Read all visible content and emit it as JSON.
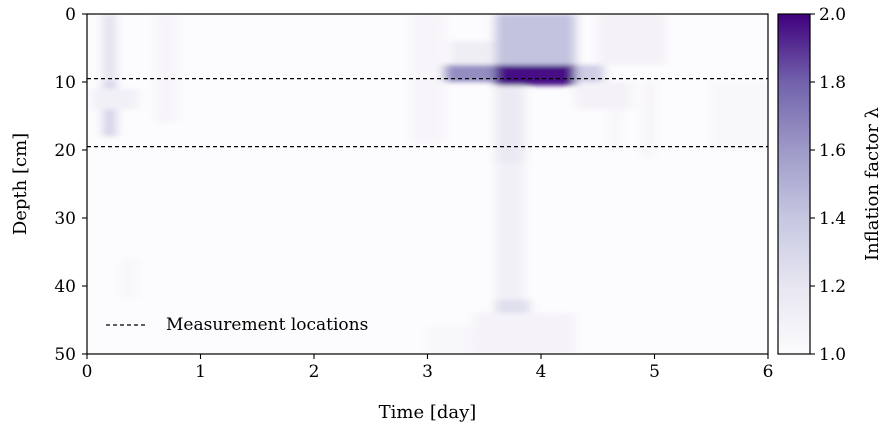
{
  "chart_data": {
    "type": "heatmap",
    "xlabel": "Time [day]",
    "ylabel": "Depth [cm]",
    "xlim": [
      0,
      6
    ],
    "ylim": [
      0,
      50
    ],
    "y_inverted": true,
    "x_ticks": [
      0,
      1,
      2,
      3,
      4,
      5,
      6
    ],
    "y_ticks": [
      0,
      10,
      20,
      30,
      40,
      50
    ],
    "colorbar": {
      "label": "Inflation factor λ",
      "range": [
        1.0,
        2.0
      ],
      "ticks": [
        "1.0",
        "1.2",
        "1.4",
        "1.6",
        "1.8",
        "2.0"
      ],
      "colormap": "Purples",
      "color_low": "#fcfbfd",
      "color_high": "#3f007d"
    },
    "hlines": [
      {
        "y": 9.5,
        "style": "dashed",
        "color": "#000000"
      },
      {
        "y": 19.5,
        "style": "dashed",
        "color": "#000000"
      }
    ],
    "legend": {
      "placement": "lower-left",
      "entries": [
        {
          "label": "Measurement locations",
          "style": "dashed"
        }
      ]
    },
    "features": [
      {
        "t0": 3.6,
        "t1": 4.3,
        "z0": 7.5,
        "z1": 10.5,
        "value": 1.95
      },
      {
        "t0": 3.15,
        "t1": 3.6,
        "z0": 7.5,
        "z1": 10.0,
        "value": 1.55
      },
      {
        "t0": 4.3,
        "t1": 4.55,
        "z0": 7.5,
        "z1": 10.0,
        "value": 1.3
      },
      {
        "t0": 3.6,
        "t1": 4.3,
        "z0": 0.0,
        "z1": 7.5,
        "value": 1.35
      },
      {
        "t0": 3.2,
        "t1": 3.6,
        "z0": 4.0,
        "z1": 7.5,
        "value": 1.12
      },
      {
        "t0": 4.5,
        "t1": 5.1,
        "z0": 0.0,
        "z1": 7.5,
        "value": 1.08
      },
      {
        "t0": 4.3,
        "t1": 4.8,
        "z0": 10.0,
        "z1": 14.0,
        "value": 1.08
      },
      {
        "t0": 3.6,
        "t1": 3.85,
        "z0": 10.5,
        "z1": 22.0,
        "value": 1.15
      },
      {
        "t0": 3.6,
        "t1": 3.85,
        "z0": 22.0,
        "z1": 42.0,
        "value": 1.1
      },
      {
        "t0": 3.6,
        "t1": 3.9,
        "z0": 42.0,
        "z1": 50.0,
        "value": 1.22
      },
      {
        "t0": 3.4,
        "t1": 4.3,
        "z0": 44.0,
        "z1": 50.0,
        "value": 1.07
      },
      {
        "t0": 3.0,
        "t1": 3.4,
        "z0": 46.0,
        "z1": 50.0,
        "value": 1.04
      },
      {
        "t0": 0.15,
        "t1": 0.25,
        "z0": 0.0,
        "z1": 10.0,
        "value": 1.22
      },
      {
        "t0": 0.15,
        "t1": 0.25,
        "z0": 10.0,
        "z1": 18.0,
        "value": 1.3
      },
      {
        "t0": 0.05,
        "t1": 0.45,
        "z0": 11.0,
        "z1": 14.0,
        "value": 1.1
      },
      {
        "t0": 0.6,
        "t1": 0.8,
        "z0": 0.0,
        "z1": 16.0,
        "value": 1.05
      },
      {
        "t0": 2.85,
        "t1": 3.15,
        "z0": 0.0,
        "z1": 19.0,
        "value": 1.05
      },
      {
        "t0": 5.5,
        "t1": 6.0,
        "z0": 10.0,
        "z1": 20.0,
        "value": 1.04
      },
      {
        "t0": 4.9,
        "t1": 5.0,
        "z0": 10.0,
        "z1": 21.0,
        "value": 1.06
      },
      {
        "t0": 4.6,
        "t1": 4.7,
        "z0": 14.0,
        "z1": 20.0,
        "value": 1.05
      },
      {
        "t0": 0.3,
        "t1": 0.45,
        "z0": 36.0,
        "z1": 42.0,
        "value": 1.04
      }
    ]
  }
}
